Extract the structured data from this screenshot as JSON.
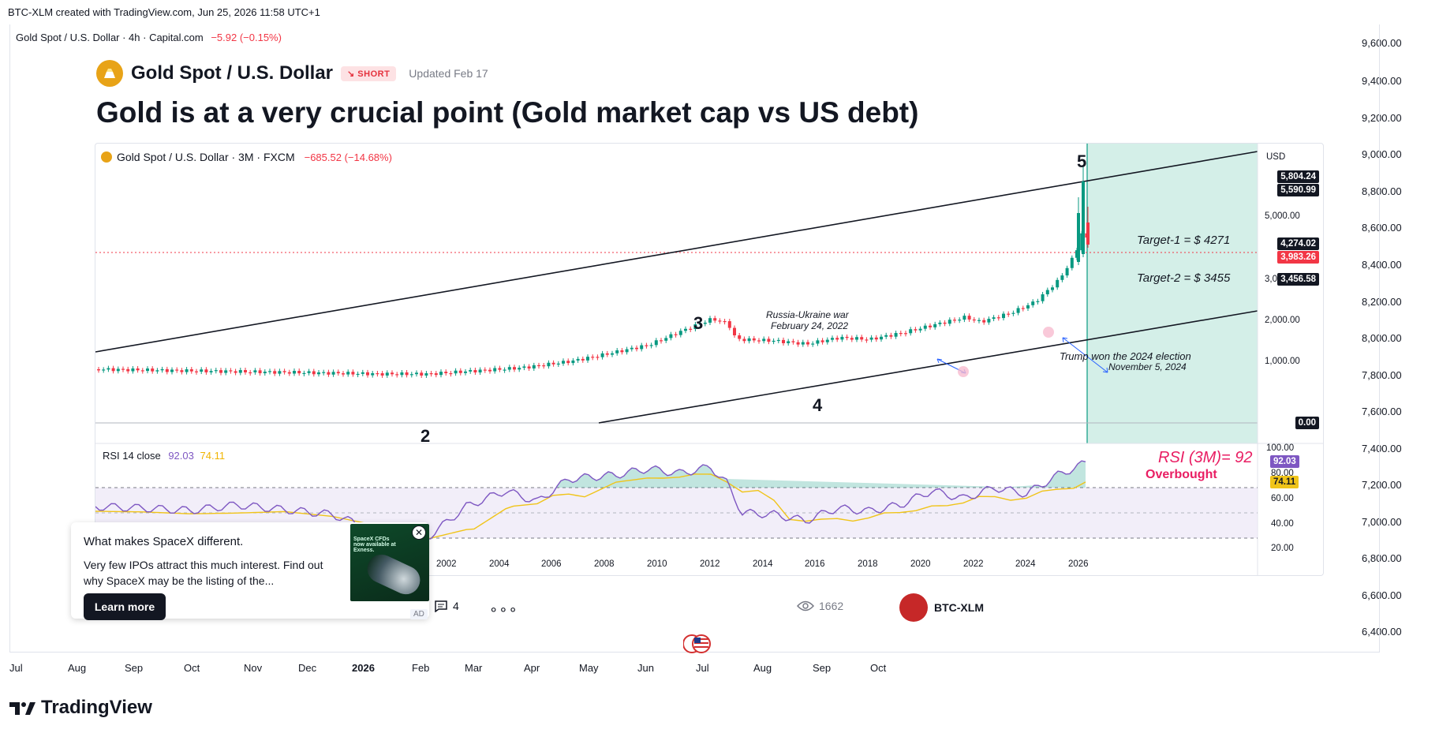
{
  "top_bar": {
    "credit": "BTC-XLM created with TradingView.com, Jun 25, 2026 11:58 UTC+1"
  },
  "outer_legend": {
    "symbol": "Gold Spot / U.S. Dollar · 4h · Capital.com",
    "change": "−5.92 (−0.15%)"
  },
  "outer_price_scale": [
    "9,600.00",
    "9,400.00",
    "9,200.00",
    "9,000.00",
    "8,800.00",
    "8,600.00",
    "8,400.00",
    "8,200.00",
    "8,000.00",
    "7,800.00",
    "7,600.00",
    "7,400.00",
    "7,200.00",
    "7,000.00",
    "6,800.00",
    "6,600.00",
    "6,400.00"
  ],
  "outer_time_axis": [
    "Jul",
    "Aug",
    "Sep",
    "Oct",
    "Nov",
    "Dec",
    "2026",
    "Feb",
    "Mar",
    "Apr",
    "May",
    "Jun",
    "Jul",
    "Aug",
    "Sep",
    "Oct"
  ],
  "idea": {
    "symbol_name": "Gold Spot / U.S. Dollar",
    "badge": "SHORT",
    "updated": "Updated Feb 17",
    "title": "Gold is at a very crucial point (Gold market cap vs US debt)"
  },
  "inner_chart": {
    "legend_symbol": "Gold Spot / U.S. Dollar · 3M · FXCM",
    "legend_change": "−685.52 (−14.68%)",
    "currency": "USD",
    "price_scale": [
      "5,000.00",
      "3,000.00",
      "2,000.00",
      "1,000.00"
    ],
    "price_labels": {
      "top1": "5,804.24",
      "top2": "5,590.99",
      "last": "4,274.02",
      "current": "3,983.26",
      "target2": "3,456.58",
      "zero": "0.00"
    },
    "waves": {
      "w2": "2",
      "w3": "3",
      "w4": "4",
      "w5": "5"
    },
    "annotations": {
      "war_title": "Russia-Ukraine war",
      "war_date": "February 24, 2022",
      "election_title": "Trump won the 2024 election",
      "election_date": "November 5, 2024",
      "target1": "Target-1 = $ 4271",
      "target2": "Target-2 = $ 3455"
    },
    "rsi": {
      "label": "RSI 14 close",
      "value": "92.03",
      "ma": "74.11",
      "note": "RSI (3M)= 92",
      "overbought": "Overbought",
      "scale": [
        "100.00",
        "80.00",
        "60.00",
        "40.00",
        "20.00"
      ]
    },
    "time_axis": [
      "2002",
      "2004",
      "2006",
      "2008",
      "2010",
      "2012",
      "2014",
      "2016",
      "2018",
      "2020",
      "2022",
      "2024",
      "2026"
    ],
    "colors": {
      "up": "#089981",
      "down": "#f23645",
      "rsi": "#7e57c2",
      "rsi_ma": "#f0c419",
      "target_zone": "#d4efe8"
    }
  },
  "ad": {
    "title": "What makes SpaceX different.",
    "body": "Very few IPOs attract this much interest. Find out why SpaceX may be the listing of the...",
    "button": "Learn more",
    "image_heading": "SpaceX CFDs now available at Exness.",
    "label": "AD"
  },
  "footer": {
    "comments": "4",
    "views": "1662",
    "author": "BTC-XLM"
  },
  "brand": {
    "name": "TradingView"
  }
}
